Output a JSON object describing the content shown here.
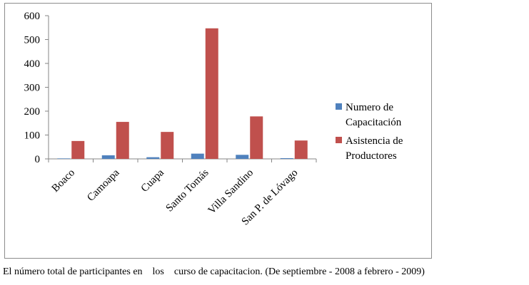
{
  "chart_data": {
    "type": "bar",
    "categories": [
      "Boaco",
      "Camoapa",
      "Cuapa",
      "Santo Tomás",
      "Villa Sandino",
      "San P. de Lóvago"
    ],
    "series": [
      {
        "name": "Numero de Capacitación",
        "name_lines": [
          "Numero de",
          "Capacitación"
        ],
        "color": "#4f81bd",
        "values": [
          2,
          15,
          7,
          22,
          17,
          3
        ]
      },
      {
        "name": "Asistencia de Productores",
        "name_lines": [
          "Asistencia de",
          "Productores"
        ],
        "color": "#c0504d",
        "values": [
          75,
          155,
          113,
          547,
          178,
          77
        ]
      }
    ],
    "ylim": [
      0,
      600
    ],
    "yticks": [
      0,
      100,
      200,
      300,
      400,
      500,
      600
    ],
    "xlabel": "",
    "ylabel": "",
    "grid": false,
    "legend": "right"
  },
  "caption": "El número total de participantes en    los    curso de capacitacion. (De septiembre - 2008 a febrero - 2009)"
}
